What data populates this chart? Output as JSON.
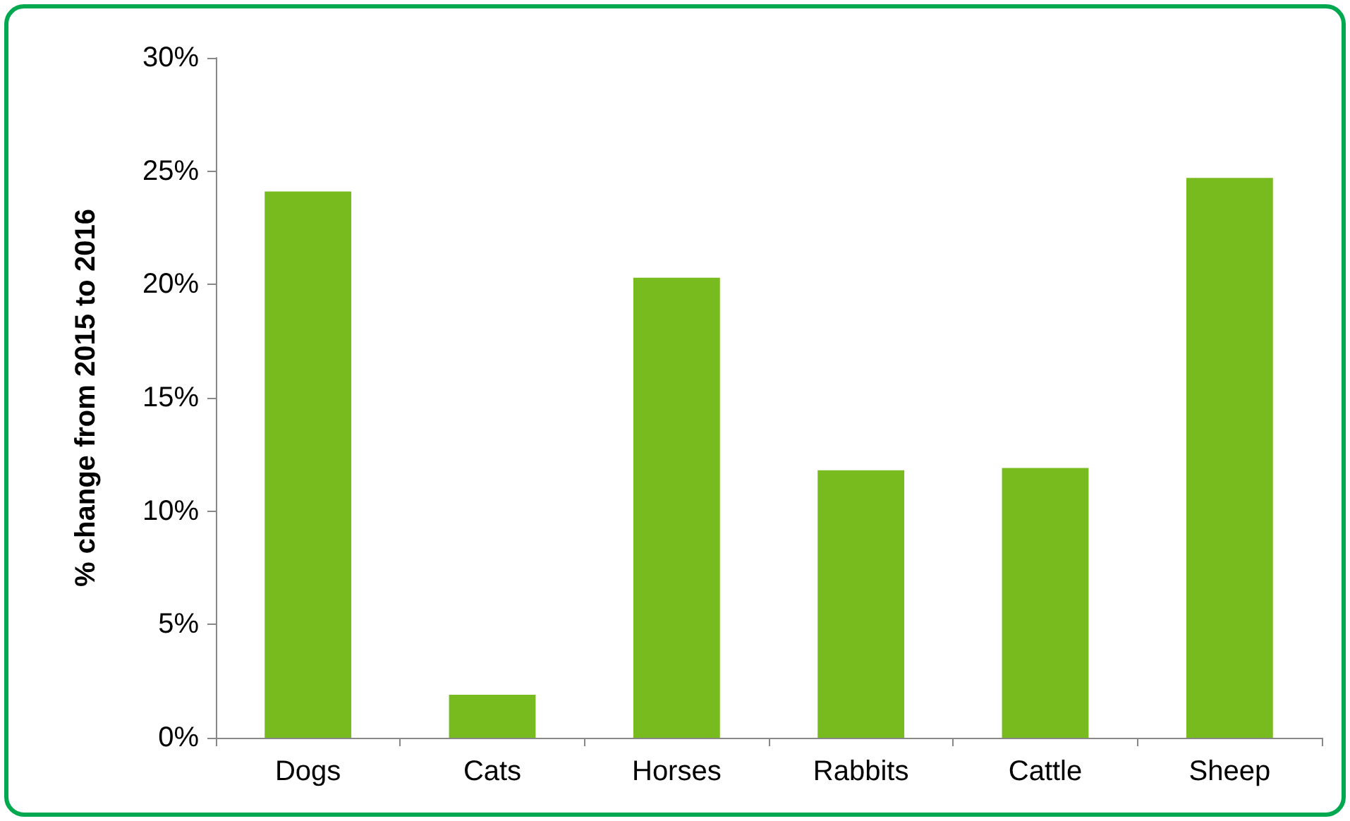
{
  "chart_data": {
    "type": "bar",
    "ylabel": "% change from 2015 to 2016",
    "categories": [
      "Dogs",
      "Cats",
      "Horses",
      "Rabbits",
      "Cattle",
      "Sheep"
    ],
    "values": [
      24.1,
      1.9,
      20.3,
      11.8,
      11.9,
      24.7
    ],
    "color": "#78bb1f",
    "ylim": [
      0,
      30
    ],
    "yticks": [
      {
        "value": 0,
        "label": "0%"
      },
      {
        "value": 5,
        "label": "5%"
      },
      {
        "value": 10,
        "label": "10%"
      },
      {
        "value": 15,
        "label": "15%"
      },
      {
        "value": 20,
        "label": "20%"
      },
      {
        "value": 25,
        "label": "25%"
      },
      {
        "value": 30,
        "label": "30%"
      }
    ],
    "grid": false
  }
}
